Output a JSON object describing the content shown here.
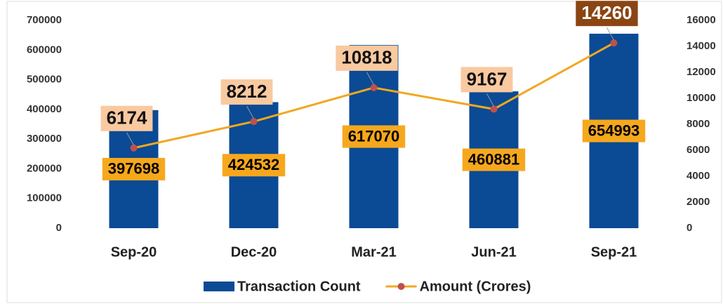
{
  "chart_data": {
    "type": "bar",
    "categories": [
      "Sep-20",
      "Dec-20",
      "Mar-21",
      "Jun-21",
      "Sep-21"
    ],
    "series": [
      {
        "name": "Transaction Count",
        "type": "bar",
        "color": "#0b4a94",
        "label_color": "#f6a81d",
        "values": [
          397698,
          424532,
          617070,
          460881,
          654993
        ]
      },
      {
        "name": "Amount (Crores)",
        "type": "line",
        "axis": "y2",
        "color": "#f0a820",
        "marker_color": "#c0504d",
        "label_colors": [
          "#f9c9a0",
          "#f9c9a0",
          "#f9c9a0",
          "#f9c9a0",
          "#8b4513"
        ],
        "values": [
          6174,
          8212,
          10818,
          9167,
          14260
        ]
      }
    ],
    "ylim": [
      0,
      700000
    ],
    "yticks": [
      0,
      100000,
      200000,
      300000,
      400000,
      500000,
      600000,
      700000
    ],
    "y2lim": [
      0,
      16000
    ],
    "y2ticks": [
      0,
      2000,
      4000,
      6000,
      8000,
      10000,
      12000,
      14000,
      16000
    ],
    "legend": "bottom"
  }
}
